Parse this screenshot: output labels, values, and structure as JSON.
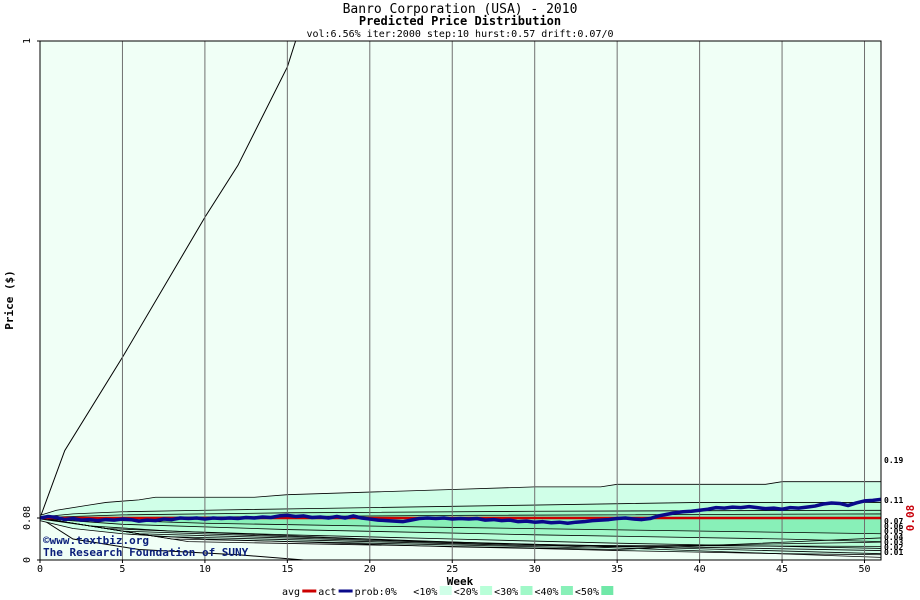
{
  "chart_data": {
    "type": "area",
    "title": "Banro Corporation (USA) - 2010",
    "subtitle": "Predicted Price Distribution",
    "params": "vol:6.56% iter:2000 step:10 hurst:0.57 drift:0.07/0",
    "xlabel": "Week",
    "ylabel": "Price ($)",
    "xlim": [
      0,
      51
    ],
    "ylim": [
      0,
      1
    ],
    "x_ticks": [
      0,
      5,
      10,
      15,
      20,
      25,
      30,
      35,
      40,
      45,
      50
    ],
    "y_tick_labels": [
      "0",
      "0.08",
      "1"
    ],
    "grid": true,
    "actual_price": 0.08,
    "actual_price_label": "0.08",
    "end_labels": [
      "0.19",
      "0.11",
      "0.07",
      "0.06",
      "0.05",
      "0.04",
      "0.03",
      "0.02",
      "0.01"
    ],
    "credit_lines": [
      "©www.textbiz.org",
      "The Research Foundation of SUNY"
    ],
    "legend": {
      "items": [
        "avg",
        "act",
        "prob:0%",
        "<10%",
        "<20%",
        "<30%",
        "<40%",
        "<50%"
      ],
      "colors": [
        "#ffffff",
        "#d0ffe8",
        "#b8ffd8",
        "#a0f8c8",
        "#88f0b8",
        "#70e8a8"
      ]
    },
    "colors": {
      "plot_background": "#f0fff6",
      "avg_line": "#cc0000",
      "act_line": "#0a0a8a",
      "grid": "#707070"
    },
    "bands": [
      {
        "name": "<10%",
        "upper": [
          [
            0,
            0.085
          ],
          [
            1,
            0.095
          ],
          [
            3,
            0.105
          ],
          [
            4,
            0.11
          ],
          [
            6,
            0.115
          ],
          [
            7,
            0.12
          ],
          [
            13,
            0.12
          ],
          [
            15,
            0.125
          ],
          [
            20,
            0.13
          ],
          [
            25,
            0.135
          ],
          [
            30,
            0.14
          ],
          [
            34,
            0.14
          ],
          [
            35,
            0.145
          ],
          [
            44,
            0.145
          ],
          [
            45,
            0.15
          ],
          [
            51,
            0.15
          ]
        ],
        "lower": [
          [
            0,
            0.075
          ],
          [
            2,
            0.06
          ],
          [
            5,
            0.05
          ],
          [
            10,
            0.04
          ],
          [
            15,
            0.035
          ],
          [
            20,
            0.03
          ],
          [
            25,
            0.025
          ],
          [
            30,
            0.022
          ],
          [
            35,
            0.018
          ],
          [
            40,
            0.015
          ],
          [
            45,
            0.012
          ],
          [
            51,
            0.01
          ]
        ]
      },
      {
        "name": "<20%",
        "upper": [
          [
            0,
            0.082
          ],
          [
            2,
            0.088
          ],
          [
            5,
            0.092
          ],
          [
            10,
            0.095
          ],
          [
            20,
            0.1
          ],
          [
            30,
            0.105
          ],
          [
            40,
            0.11
          ],
          [
            51,
            0.11
          ]
        ],
        "lower": [
          [
            0,
            0.078
          ],
          [
            3,
            0.065
          ],
          [
            8,
            0.055
          ],
          [
            15,
            0.048
          ],
          [
            25,
            0.04
          ],
          [
            35,
            0.032
          ],
          [
            45,
            0.026
          ],
          [
            51,
            0.022
          ]
        ]
      },
      {
        "name": "<30%",
        "upper": [
          [
            0,
            0.081
          ],
          [
            5,
            0.086
          ],
          [
            15,
            0.09
          ],
          [
            30,
            0.093
          ],
          [
            51,
            0.095
          ]
        ],
        "lower": [
          [
            0,
            0.079
          ],
          [
            5,
            0.068
          ],
          [
            15,
            0.058
          ],
          [
            30,
            0.048
          ],
          [
            45,
            0.04
          ],
          [
            51,
            0.035
          ]
        ]
      },
      {
        "name": "<40%",
        "upper": [
          [
            0,
            0.08
          ],
          [
            10,
            0.082
          ],
          [
            25,
            0.085
          ],
          [
            51,
            0.088
          ]
        ],
        "lower": [
          [
            0,
            0.08
          ],
          [
            10,
            0.07
          ],
          [
            25,
            0.062
          ],
          [
            51,
            0.05
          ]
        ]
      }
    ],
    "series": [
      {
        "name": "avg",
        "values": [
          [
            0,
            0.08
          ],
          [
            5,
            0.08
          ],
          [
            10,
            0.08
          ],
          [
            20,
            0.08
          ],
          [
            30,
            0.08
          ],
          [
            40,
            0.08
          ],
          [
            51,
            0.08
          ]
        ]
      },
      {
        "name": "act",
        "values": [
          [
            0,
            0.08
          ],
          [
            0.5,
            0.083
          ],
          [
            1,
            0.081
          ],
          [
            1.5,
            0.077
          ],
          [
            2,
            0.079
          ],
          [
            2.5,
            0.076
          ],
          [
            3,
            0.077
          ],
          [
            3.5,
            0.075
          ],
          [
            4,
            0.077
          ],
          [
            4.5,
            0.076
          ],
          [
            5,
            0.078
          ],
          [
            5.5,
            0.077
          ],
          [
            6,
            0.074
          ],
          [
            6.5,
            0.076
          ],
          [
            7,
            0.075
          ],
          [
            7.5,
            0.078
          ],
          [
            8,
            0.077
          ],
          [
            8.5,
            0.08
          ],
          [
            9,
            0.079
          ],
          [
            9.5,
            0.08
          ],
          [
            10,
            0.078
          ],
          [
            10.5,
            0.08
          ],
          [
            11,
            0.079
          ],
          [
            11.5,
            0.08
          ],
          [
            12,
            0.079
          ],
          [
            12.5,
            0.081
          ],
          [
            13,
            0.08
          ],
          [
            13.5,
            0.082
          ],
          [
            14,
            0.081
          ],
          [
            14.5,
            0.084
          ],
          [
            15,
            0.085
          ],
          [
            15.5,
            0.083
          ],
          [
            16,
            0.084
          ],
          [
            16.5,
            0.081
          ],
          [
            17,
            0.082
          ],
          [
            17.5,
            0.08
          ],
          [
            18,
            0.083
          ],
          [
            18.5,
            0.08
          ],
          [
            19,
            0.084
          ],
          [
            19.5,
            0.08
          ],
          [
            20,
            0.078
          ],
          [
            20.5,
            0.076
          ],
          [
            21,
            0.075
          ],
          [
            21.5,
            0.074
          ],
          [
            22,
            0.073
          ],
          [
            22.5,
            0.076
          ],
          [
            23,
            0.079
          ],
          [
            23.5,
            0.08
          ],
          [
            24,
            0.079
          ],
          [
            24.5,
            0.08
          ],
          [
            25,
            0.078
          ],
          [
            25.5,
            0.079
          ],
          [
            26,
            0.078
          ],
          [
            26.5,
            0.079
          ],
          [
            27,
            0.076
          ],
          [
            27.5,
            0.077
          ],
          [
            28,
            0.075
          ],
          [
            28.5,
            0.076
          ],
          [
            29,
            0.073
          ],
          [
            29.5,
            0.074
          ],
          [
            30,
            0.072
          ],
          [
            30.5,
            0.073
          ],
          [
            31,
            0.071
          ],
          [
            31.5,
            0.072
          ],
          [
            32,
            0.07
          ],
          [
            32.5,
            0.072
          ],
          [
            33,
            0.073
          ],
          [
            33.5,
            0.075
          ],
          [
            34,
            0.076
          ],
          [
            34.5,
            0.077
          ],
          [
            35,
            0.079
          ],
          [
            35.5,
            0.08
          ],
          [
            36,
            0.078
          ],
          [
            36.5,
            0.077
          ],
          [
            37,
            0.079
          ],
          [
            37.5,
            0.084
          ],
          [
            38,
            0.087
          ],
          [
            38.5,
            0.09
          ],
          [
            39,
            0.092
          ],
          [
            39.5,
            0.093
          ],
          [
            40,
            0.095
          ],
          [
            40.5,
            0.097
          ],
          [
            41,
            0.1
          ],
          [
            41.5,
            0.099
          ],
          [
            42,
            0.101
          ],
          [
            42.5,
            0.1
          ],
          [
            43,
            0.102
          ],
          [
            43.5,
            0.1
          ],
          [
            44,
            0.098
          ],
          [
            44.5,
            0.099
          ],
          [
            45,
            0.097
          ],
          [
            45.5,
            0.1
          ],
          [
            46,
            0.099
          ],
          [
            46.5,
            0.101
          ],
          [
            47,
            0.103
          ],
          [
            47.5,
            0.107
          ],
          [
            48,
            0.109
          ],
          [
            48.5,
            0.108
          ],
          [
            49,
            0.104
          ],
          [
            49.5,
            0.109
          ],
          [
            50,
            0.113
          ],
          [
            50.5,
            0.114
          ],
          [
            51,
            0.116
          ]
        ]
      }
    ]
  }
}
